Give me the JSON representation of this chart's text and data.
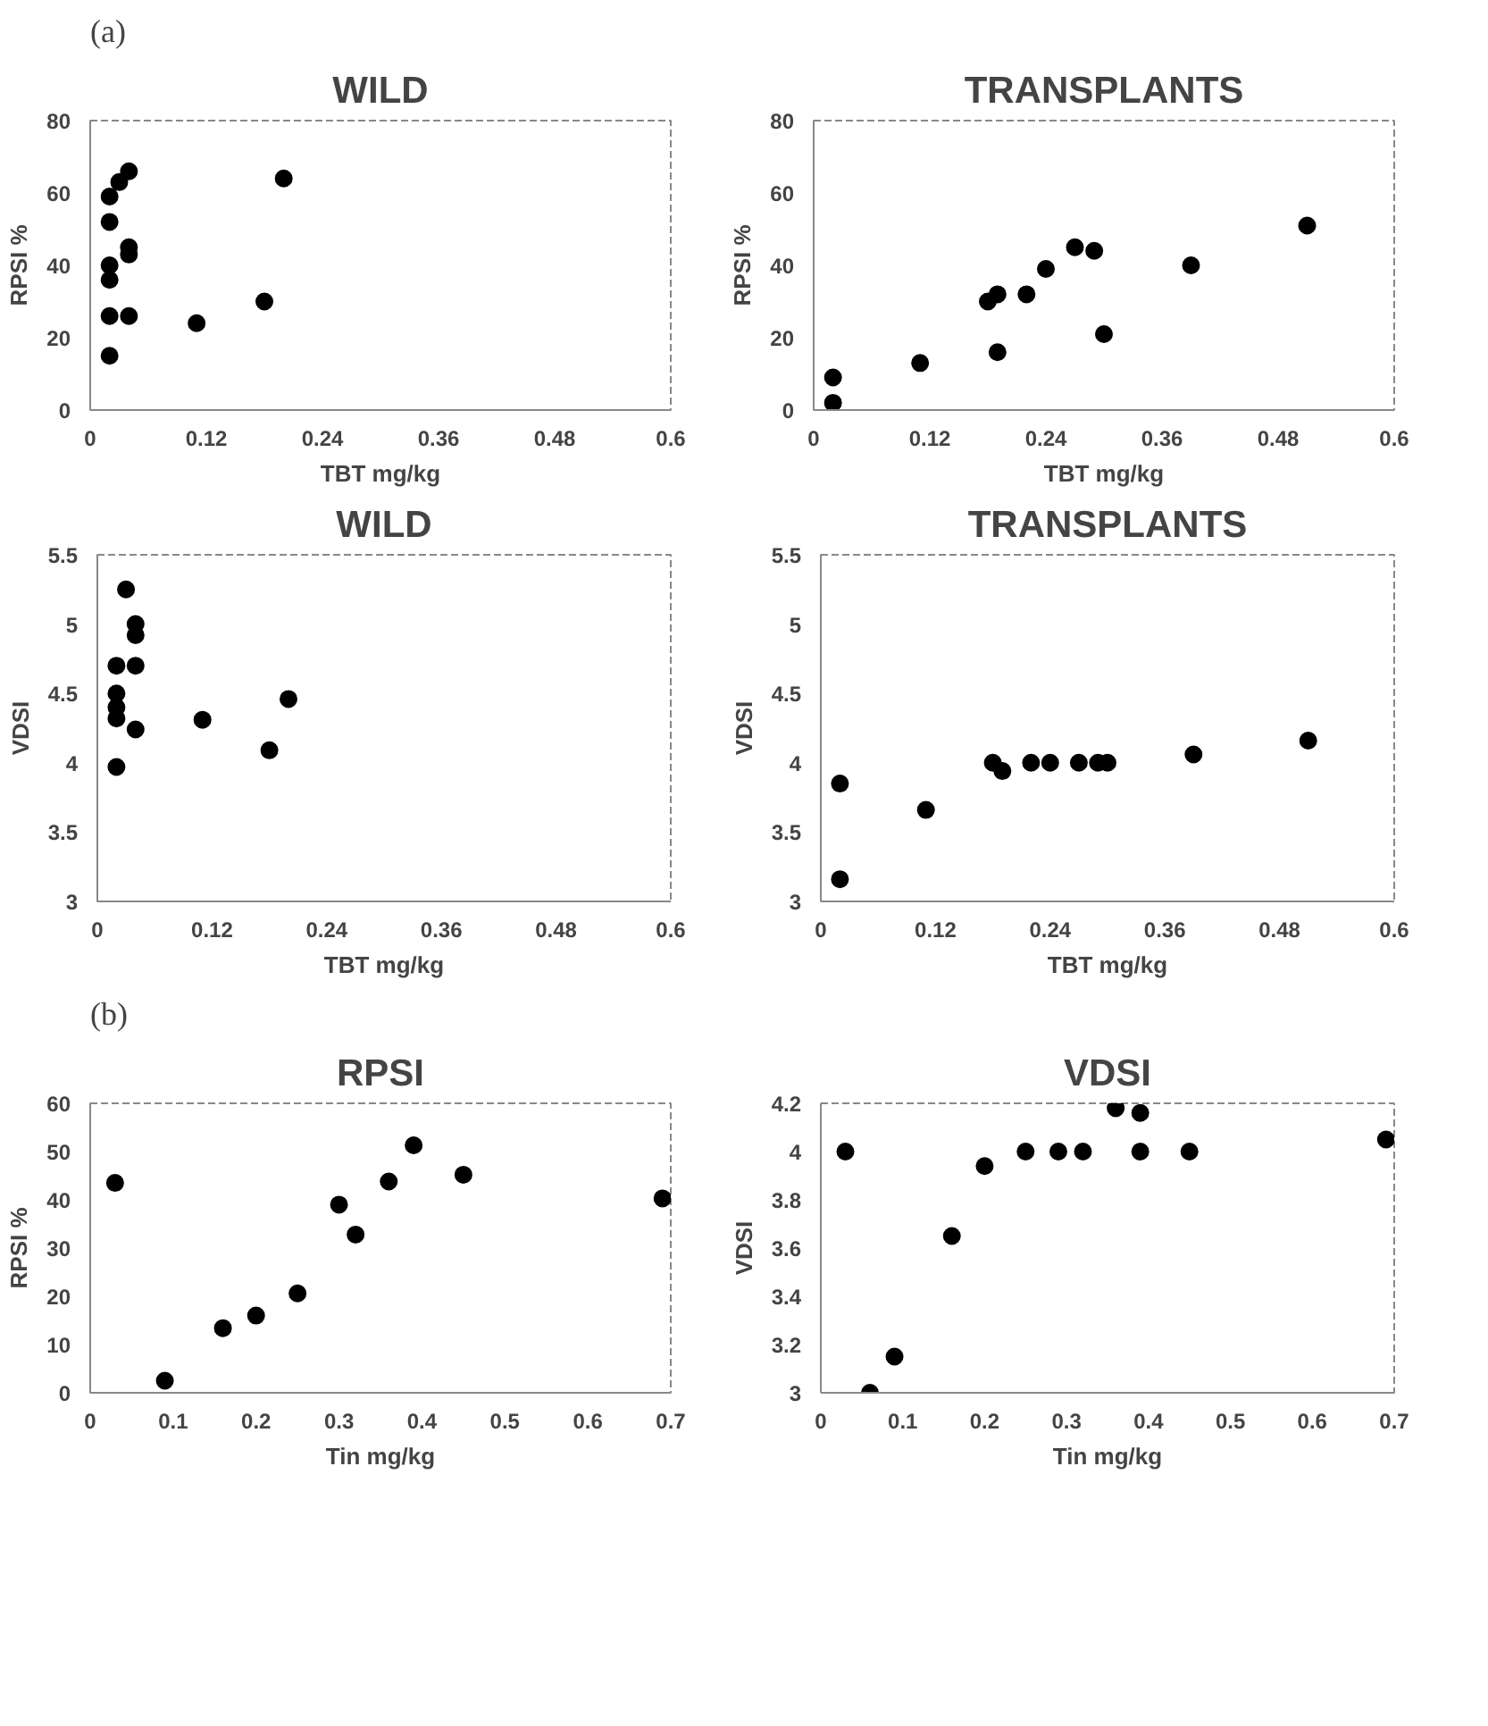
{
  "chart_data": [
    {
      "type": "scatter",
      "title": "WILD",
      "annotations": [
        "(a)"
      ],
      "xlabel": "TBT mg/kg",
      "ylabel": "RPSI %",
      "xlim": [
        0,
        0.6
      ],
      "ylim": [
        0,
        80
      ],
      "xticks": [
        0,
        0.12,
        0.24,
        0.36,
        0.48,
        0.6
      ],
      "yticks": [
        0,
        20,
        40,
        60,
        80
      ],
      "grid": false,
      "marker": "circle",
      "series": [
        {
          "color": "#000000",
          "x": [
            0.02,
            0.02,
            0.02,
            0.02,
            0.02,
            0.02,
            0.03,
            0.04,
            0.04,
            0.04,
            0.04,
            0.11,
            0.18,
            0.2
          ],
          "values": [
            59,
            52,
            40,
            36,
            26,
            15,
            63,
            66,
            45,
            43,
            26,
            24,
            30,
            64
          ]
        }
      ]
    },
    {
      "type": "scatter",
      "title": "TRANSPLANTS",
      "xlabel": "TBT mg/kg",
      "ylabel": "RPSI %",
      "xlim": [
        0,
        0.6
      ],
      "ylim": [
        0,
        80
      ],
      "xticks": [
        0,
        0.12,
        0.24,
        0.36,
        0.48,
        0.6
      ],
      "yticks": [
        0,
        20,
        40,
        60,
        80
      ],
      "grid": false,
      "marker": "circle",
      "series": [
        {
          "color": "#000000",
          "x": [
            0.02,
            0.02,
            0.11,
            0.18,
            0.19,
            0.19,
            0.22,
            0.24,
            0.27,
            0.29,
            0.3,
            0.39,
            0.51
          ],
          "values": [
            9,
            2,
            13,
            30,
            32,
            16,
            32,
            39,
            45,
            44,
            21,
            40,
            51
          ]
        }
      ]
    },
    {
      "type": "scatter",
      "title": "WILD",
      "xlabel": "TBT mg/kg",
      "ylabel": "VDSI",
      "xlim": [
        0,
        0.6
      ],
      "ylim": [
        3,
        5.5
      ],
      "xticks": [
        0,
        0.12,
        0.24,
        0.36,
        0.48,
        0.6
      ],
      "yticks": [
        3,
        3.5,
        4,
        4.5,
        5,
        5.5
      ],
      "grid": false,
      "marker": "circle",
      "series": [
        {
          "color": "#000000",
          "x": [
            0.03,
            0.04,
            0.04,
            0.04,
            0.02,
            0.02,
            0.02,
            0.02,
            0.04,
            0.02,
            0.11,
            0.18,
            0.2
          ],
          "values": [
            5.25,
            5.0,
            4.92,
            4.7,
            4.7,
            4.5,
            4.4,
            4.32,
            4.24,
            3.97,
            4.31,
            4.09,
            4.46
          ]
        }
      ]
    },
    {
      "type": "scatter",
      "title": "TRANSPLANTS",
      "xlabel": "TBT mg/kg",
      "ylabel": "VDSI",
      "xlim": [
        0,
        0.6
      ],
      "ylim": [
        3,
        5.5
      ],
      "xticks": [
        0,
        0.12,
        0.24,
        0.36,
        0.48,
        0.6
      ],
      "yticks": [
        3,
        3.5,
        4,
        4.5,
        5,
        5.5
      ],
      "grid": false,
      "marker": "circle",
      "series": [
        {
          "color": "#000000",
          "x": [
            0.02,
            0.02,
            0.11,
            0.18,
            0.19,
            0.22,
            0.24,
            0.27,
            0.29,
            0.3,
            0.39,
            0.51
          ],
          "values": [
            3.85,
            3.16,
            3.66,
            4.0,
            3.94,
            4.0,
            4.0,
            4.0,
            4.0,
            4.0,
            4.06,
            4.16
          ]
        }
      ]
    },
    {
      "type": "scatter",
      "title": "RPSI",
      "annotations": [
        "(b)"
      ],
      "xlabel": "Tin mg/kg",
      "ylabel": "RPSI %",
      "xlim": [
        0,
        0.7
      ],
      "ylim": [
        0,
        60
      ],
      "xticks": [
        0,
        0.1,
        0.2,
        0.3,
        0.4,
        0.5,
        0.6,
        0.7
      ],
      "yticks": [
        0,
        10,
        20,
        30,
        40,
        50,
        60
      ],
      "grid": false,
      "marker": "circle",
      "series": [
        {
          "color": "#000000",
          "x": [
            0.03,
            0.09,
            0.16,
            0.2,
            0.25,
            0.3,
            0.32,
            0.36,
            0.39,
            0.45,
            0.69
          ],
          "values": [
            43.5,
            2.5,
            13.4,
            16,
            20.6,
            39,
            32.8,
            43.8,
            51.3,
            45.2,
            40.3
          ]
        }
      ]
    },
    {
      "type": "scatter",
      "title": "VDSI",
      "xlabel": "Tin mg/kg",
      "ylabel": "VDSI",
      "xlim": [
        0,
        0.7
      ],
      "ylim": [
        3,
        4.2
      ],
      "xticks": [
        0,
        0.1,
        0.2,
        0.3,
        0.4,
        0.5,
        0.6,
        0.7
      ],
      "yticks": [
        3,
        3.2,
        3.4,
        3.6,
        3.8,
        4,
        4.2
      ],
      "grid": false,
      "marker": "circle",
      "series": [
        {
          "color": "#000000",
          "x": [
            0.03,
            0.06,
            0.09,
            0.16,
            0.2,
            0.25,
            0.29,
            0.32,
            0.36,
            0.39,
            0.39,
            0.45,
            0.69
          ],
          "values": [
            4.0,
            3.0,
            3.15,
            3.65,
            3.94,
            4.0,
            4.0,
            4.0,
            4.18,
            4.16,
            4.0,
            4.0,
            4.05
          ]
        }
      ]
    }
  ]
}
